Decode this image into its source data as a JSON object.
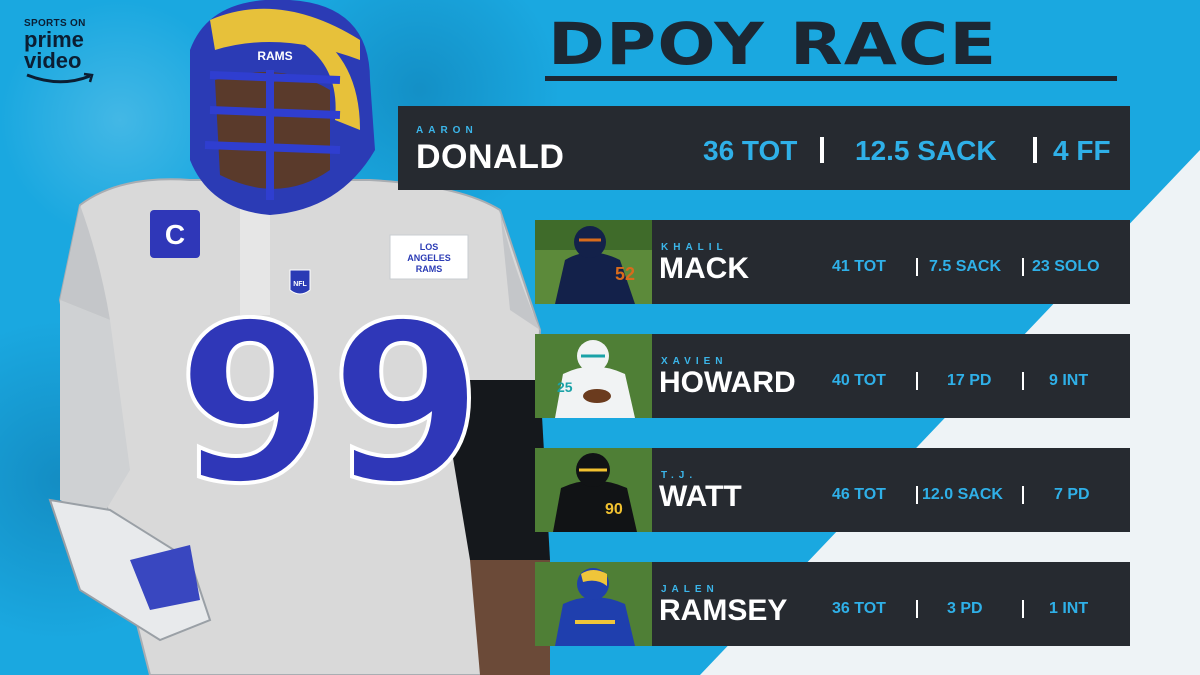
{
  "logo": {
    "line1": "SPORTS ON",
    "line2": "prime",
    "line3": "video"
  },
  "title": "DPOY RACE",
  "colors": {
    "background": "#1aa8e0",
    "panel": "#262a30",
    "accent": "#2fb0e8",
    "title": "#1c2733"
  },
  "leader": {
    "first": "AARON",
    "last": "DONALD",
    "stats": [
      "36 TOT",
      "12.5 SACK",
      "4 FF"
    ]
  },
  "players": [
    {
      "first": "KHALIL",
      "last": "MACK",
      "stats": [
        "41 TOT",
        "7.5 SACK",
        "23 SOLO"
      ],
      "thumb_icon": "bears-player-photo"
    },
    {
      "first": "XAVIEN",
      "last": "HOWARD",
      "stats": [
        "40 TOT",
        "17 PD",
        "9 INT"
      ],
      "thumb_icon": "dolphins-player-photo"
    },
    {
      "first": "T.J.",
      "last": "WATT",
      "stats": [
        "46 TOT",
        "12.0 SACK",
        "7 PD"
      ],
      "thumb_icon": "steelers-player-photo"
    },
    {
      "first": "JALEN",
      "last": "RAMSEY",
      "stats": [
        "36 TOT",
        "3 PD",
        "1 INT"
      ],
      "thumb_icon": "rams-player-photo"
    }
  ],
  "hero": {
    "jersey_number": "99",
    "patch_line1": "LOS",
    "patch_line2": "ANGELES",
    "patch_line3": "RAMS",
    "helmet_text": "RAMS",
    "captain": "C",
    "nfl": "NFL"
  }
}
